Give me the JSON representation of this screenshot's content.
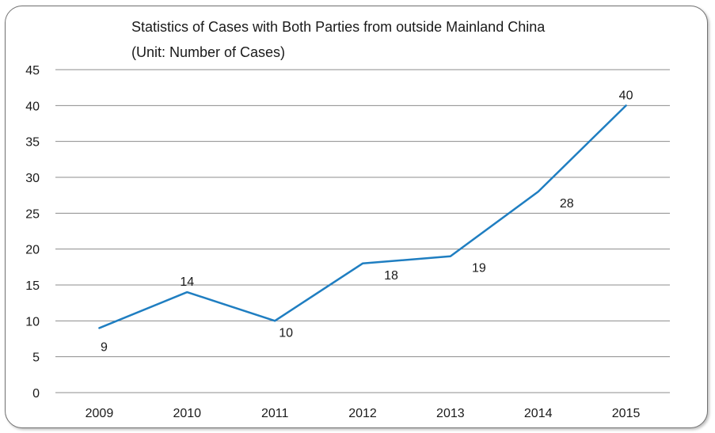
{
  "chart_data": {
    "type": "line",
    "title": "Statistics of Cases with Both Parties from outside Mainland China",
    "subtitle": "(Unit: Number of Cases)",
    "categories": [
      "2009",
      "2010",
      "2011",
      "2012",
      "2013",
      "2014",
      "2015"
    ],
    "series": [
      {
        "values": [
          9,
          14,
          10,
          18,
          19,
          28,
          40
        ],
        "color": "#1f7ec1"
      }
    ],
    "data_labels": [
      "9",
      "14",
      "10",
      "18",
      "19",
      "28",
      "40"
    ],
    "yticks": [
      "0",
      "5",
      "10",
      "15",
      "20",
      "25",
      "30",
      "35",
      "40",
      "45"
    ],
    "ylim": [
      0,
      45
    ],
    "grid": true,
    "legend": "none"
  }
}
